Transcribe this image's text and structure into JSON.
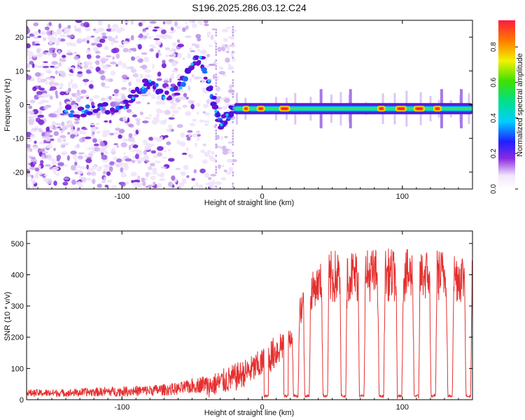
{
  "title": "S196.2025.286.03.12.C24",
  "chart_data": [
    {
      "type": "heatmap",
      "xlabel": "Height of straight line (km)",
      "ylabel": "Frequency (Hz)",
      "xlim": [
        -168,
        150
      ],
      "ylim": [
        -25,
        25
      ],
      "xticks": [
        -100,
        0,
        100
      ],
      "xtick_labels": [
        "-100",
        "0",
        "100"
      ],
      "yticks": [
        -20,
        -10,
        0,
        10,
        20
      ],
      "ytick_labels": [
        "-20",
        "-10",
        "0",
        "10",
        "20"
      ],
      "colorbar": {
        "label": "Normalized spectral amplitude",
        "range": [
          0,
          0.95
        ],
        "ticks": [
          0.0,
          0.2,
          0.4,
          0.6,
          0.8
        ],
        "tick_labels": [
          "0.0",
          "0.2",
          "0.4",
          "0.6",
          "0.8"
        ]
      },
      "noise_region_x": [
        -168,
        -20
      ],
      "signal_track": {
        "x_start": -20,
        "x_end": 150,
        "frequency_hz": -1.2,
        "hot_segments_x": [
          [
            -14,
            -9
          ],
          [
            -4,
            2
          ],
          [
            12,
            20
          ],
          [
            82,
            88
          ],
          [
            95,
            103
          ],
          [
            108,
            116
          ],
          [
            122,
            128
          ]
        ]
      },
      "ridge_points": [
        {
          "x": -140,
          "y": -2
        },
        {
          "x": -128,
          "y": -2
        },
        {
          "x": -115,
          "y": -1
        },
        {
          "x": -98,
          "y": -1
        },
        {
          "x": -92,
          "y": 2
        },
        {
          "x": -85,
          "y": 5
        },
        {
          "x": -80,
          "y": 7
        },
        {
          "x": -70,
          "y": 2
        },
        {
          "x": -58,
          "y": 5
        },
        {
          "x": -50,
          "y": 12
        },
        {
          "x": -44,
          "y": 14
        },
        {
          "x": -38,
          "y": 7
        },
        {
          "x": -33,
          "y": -2
        },
        {
          "x": -29,
          "y": -6
        },
        {
          "x": -25,
          "y": -3
        },
        {
          "x": -20,
          "y": -1
        }
      ]
    },
    {
      "type": "line",
      "xlabel": "Height of straight line (km)",
      "ylabel": "SNR (10 * v/v)",
      "xlim": [
        -168,
        150
      ],
      "ylim": [
        0,
        540
      ],
      "xticks": [
        -100,
        0,
        100
      ],
      "xtick_labels": [
        "-100",
        "0",
        "100"
      ],
      "yticks": [
        0,
        100,
        200,
        300,
        400,
        500
      ],
      "ytick_labels": [
        "0",
        "100",
        "200",
        "300",
        "400",
        "500"
      ],
      "series": [
        {
          "name": "SNR",
          "color": "#e53030",
          "envelope_x": [
            -168,
            -140,
            -120,
            -100,
            -80,
            -60,
            -40,
            -30,
            -20,
            -10,
            0,
            10,
            20,
            24,
            30,
            36,
            40,
            45,
            50,
            60,
            70,
            80,
            90,
            100,
            110,
            120,
            130,
            140,
            148
          ],
          "envelope_mean": [
            15,
            16,
            17,
            18,
            20,
            24,
            40,
            55,
            70,
            90,
            115,
            155,
            210,
            255,
            320,
            350,
            370,
            380,
            390,
            400,
            395,
            400,
            400,
            395,
            400,
            400,
            400,
            395,
            390
          ],
          "envelope_amplitude": [
            15,
            15,
            18,
            20,
            22,
            25,
            35,
            40,
            45,
            45,
            50,
            55,
            60,
            60,
            60,
            60,
            60,
            80,
            90,
            85,
            85,
            85,
            85,
            85,
            85,
            85,
            85,
            85,
            85
          ],
          "dropouts_x": [
            3,
            17,
            24,
            32,
            45,
            58,
            71,
            85,
            98,
            110,
            122,
            134,
            147
          ],
          "dropout_level": 8
        }
      ]
    }
  ]
}
